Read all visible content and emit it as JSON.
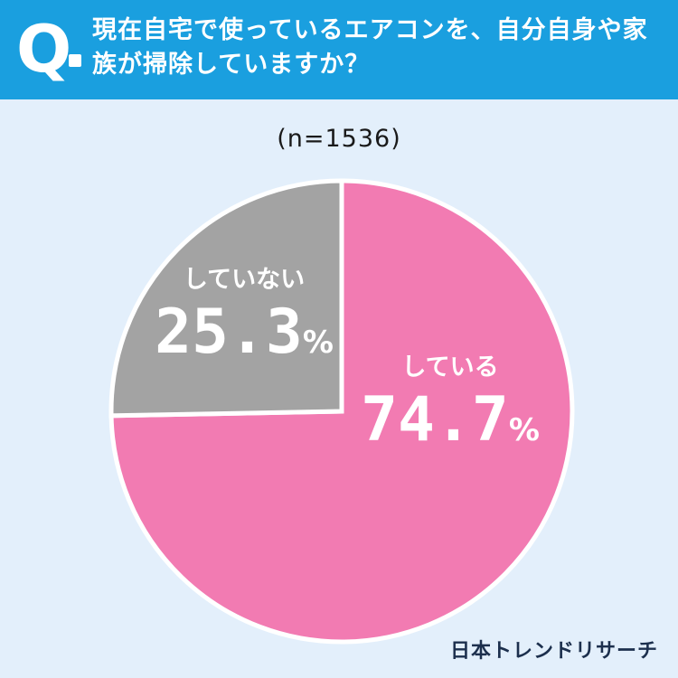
{
  "header": {
    "q_label": "Q",
    "question": "現在自宅で使っているエアコンを、自分自身や家族が掃除していますか？"
  },
  "chart_data": {
    "type": "pie",
    "title": "現在自宅で使っているエアコンを、自分自身や家族が掃除していますか？",
    "sample_size": "(n=1536)",
    "slices": [
      {
        "label": "している",
        "value": 74.7,
        "value_label": "74.7",
        "unit": "%",
        "color": "#f27bb2"
      },
      {
        "label": "していない",
        "value": 25.3,
        "value_label": "25.3",
        "unit": "%",
        "color": "#a3a3a3"
      }
    ]
  },
  "footer": {
    "brand": "日本トレンドリサーチ"
  },
  "colors": {
    "header_bg": "#1a9fdf",
    "page_bg": "#e3effb",
    "separator": "#ffffff"
  }
}
